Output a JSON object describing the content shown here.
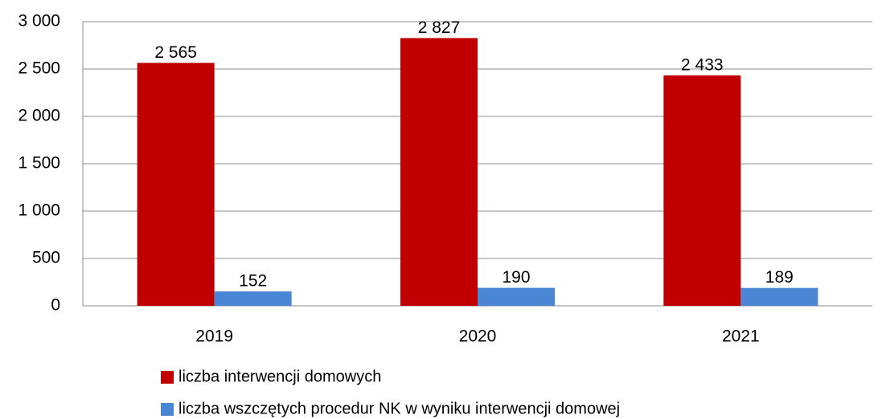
{
  "chart_data": {
    "type": "bar",
    "categories": [
      "2019",
      "2020",
      "2021"
    ],
    "series": [
      {
        "name": "liczba interwencji domowych",
        "color": "#c00000",
        "values": [
          2565,
          2827,
          2433
        ],
        "value_labels": [
          "2 565",
          "2 827",
          "2 433"
        ]
      },
      {
        "name": "liczba wszczętych procedur NK w wyniku interwencji domowej",
        "color": "#4a86d4",
        "values": [
          152,
          190,
          189
        ],
        "value_labels": [
          "152",
          "190",
          "189"
        ]
      }
    ],
    "ylim": [
      0,
      3000
    ],
    "yticks": [
      0,
      500,
      {
        "value": 1000,
        "label": "1 000"
      },
      {
        "value": 1500,
        "label": "1 500"
      },
      {
        "value": 2000,
        "label": "2 000"
      },
      {
        "value": 2500,
        "label": "2 500"
      },
      {
        "value": 3000,
        "label": "3 000"
      }
    ],
    "grid": true,
    "legend": "bottom"
  }
}
